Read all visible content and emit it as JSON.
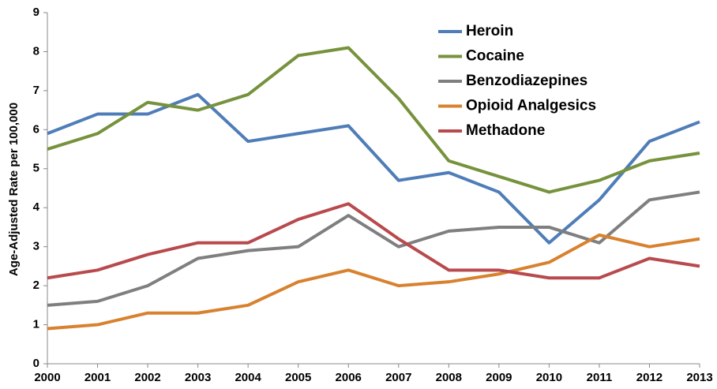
{
  "chart_data": {
    "type": "line",
    "y_label": "Age-Adjusted Rate per 100,000",
    "categories": [
      "2000",
      "2001",
      "2002",
      "2003",
      "2004",
      "2005",
      "2006",
      "2007",
      "2008",
      "2009",
      "2010",
      "2011",
      "2012",
      "2013"
    ],
    "series": [
      {
        "name": "Heroin",
        "color": "#4f7db8",
        "values": [
          5.9,
          6.4,
          6.4,
          6.9,
          5.7,
          5.9,
          6.1,
          4.7,
          4.9,
          4.4,
          3.1,
          4.2,
          5.7,
          6.2
        ]
      },
      {
        "name": "Cocaine",
        "color": "#76923c",
        "values": [
          5.5,
          5.9,
          6.7,
          6.5,
          6.9,
          7.9,
          8.1,
          6.8,
          5.2,
          4.8,
          4.4,
          4.7,
          5.2,
          5.4
        ]
      },
      {
        "name": "Benzodiazepines",
        "color": "#7f7f7f",
        "values": [
          1.5,
          1.6,
          2.0,
          2.7,
          2.9,
          3.0,
          3.8,
          3.0,
          3.4,
          3.5,
          3.5,
          3.1,
          4.2,
          4.4
        ]
      },
      {
        "name": "Opioid Analgesics",
        "color": "#d8812f",
        "values": [
          0.9,
          1.0,
          1.3,
          1.3,
          1.5,
          2.1,
          2.4,
          2.0,
          2.1,
          2.3,
          2.6,
          3.3,
          3.0,
          3.2
        ]
      },
      {
        "name": "Methadone",
        "color": "#b84a4d",
        "values": [
          2.2,
          2.4,
          2.8,
          3.1,
          3.1,
          3.7,
          4.1,
          3.2,
          2.4,
          2.4,
          2.2,
          2.2,
          2.7,
          2.5
        ]
      }
    ],
    "ylim": [
      0,
      9
    ],
    "yticks": [
      0,
      1,
      2,
      3,
      4,
      5,
      6,
      7,
      8,
      9
    ],
    "grid": false,
    "legend": "top-right"
  }
}
